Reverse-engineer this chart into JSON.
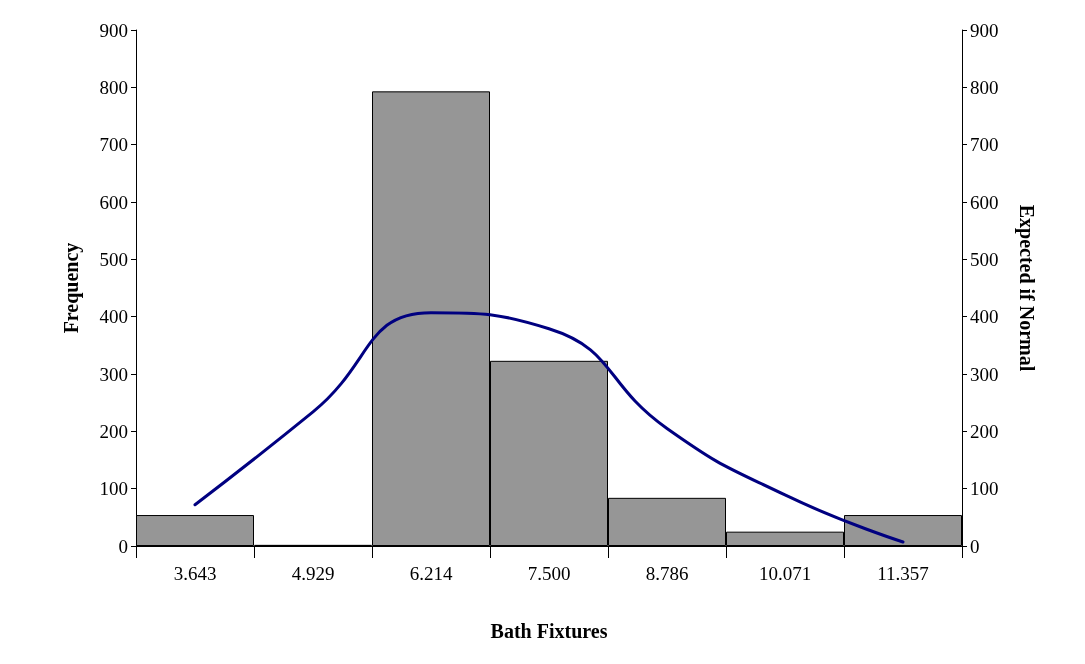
{
  "chart_data": {
    "type": "bar",
    "xlabel": "Bath Fixtures",
    "ylabel": "Frequency",
    "y2label": "Expected if Normal",
    "categories": [
      "3.643",
      "4.929",
      "6.214",
      "7.500",
      "8.786",
      "10.071",
      "11.357"
    ],
    "series": [
      {
        "color": "#969696",
        "values": [
          54,
          2,
          793,
          323,
          84,
          25,
          54
        ]
      },
      {
        "type": "line",
        "axis": "y2",
        "color": "#000080",
        "values": [
          72,
          234,
          407,
          379,
          205,
          89,
          7
        ],
        "marker": "none",
        "line_style": "solid"
      }
    ],
    "ylim": [
      0,
      900
    ],
    "yticks": [
      0,
      100,
      200,
      300,
      400,
      500,
      600,
      700,
      800,
      900
    ],
    "y2lim": [
      0,
      900
    ],
    "y2ticks": [
      0,
      100,
      200,
      300,
      400,
      500,
      600,
      700,
      800,
      900
    ],
    "grid": false
  }
}
